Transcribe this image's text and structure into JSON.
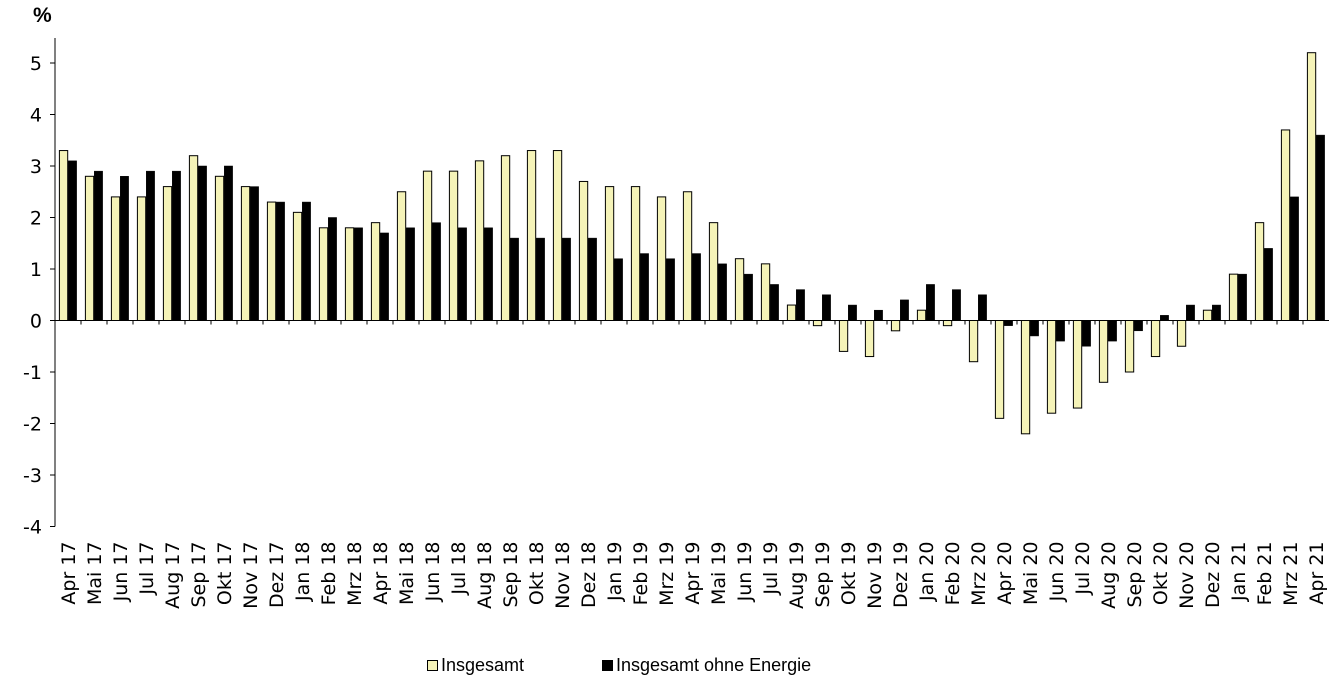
{
  "chart_data": {
    "type": "bar",
    "unit_label": "%",
    "ylim": [
      -4,
      5.5
    ],
    "yticks": [
      "5",
      "4",
      "3",
      "2",
      "1",
      "0",
      "-1",
      "-2",
      "-3",
      "-4"
    ],
    "ytick_values": [
      5,
      4,
      3,
      2,
      1,
      0,
      -1,
      -2,
      -3,
      -4
    ],
    "categories": [
      "Apr 17",
      "Mai 17",
      "Jun 17",
      "Jul 17",
      "Aug 17",
      "Sep 17",
      "Okt 17",
      "Nov 17",
      "Dez 17",
      "Jan 18",
      "Feb 18",
      "Mrz 18",
      "Apr 18",
      "Mai 18",
      "Jun 18",
      "Jul 18",
      "Aug 18",
      "Sep 18",
      "Okt 18",
      "Nov 18",
      "Dez 18",
      "Jan 19",
      "Feb 19",
      "Mrz 19",
      "Apr 19",
      "Mai 19",
      "Jun 19",
      "Jul 19",
      "Aug 19",
      "Sep 19",
      "Okt 19",
      "Nov 19",
      "Dez 19",
      "Jan 20",
      "Feb 20",
      "Mrz 20",
      "Apr 20",
      "Mai 20",
      "Jun 20",
      "Jul 20",
      "Aug 20",
      "Sep 20",
      "Okt 20",
      "Nov 20",
      "Dez 20",
      "Jan 21",
      "Feb 21",
      "Mrz 21",
      "Apr 21"
    ],
    "series": [
      {
        "name": "Insgesamt",
        "color": "#f5f3b8",
        "values": [
          3.3,
          2.8,
          2.4,
          2.4,
          2.6,
          3.2,
          2.8,
          2.6,
          2.3,
          2.1,
          1.8,
          1.8,
          1.9,
          2.5,
          2.9,
          2.9,
          3.1,
          3.2,
          3.3,
          3.3,
          2.7,
          2.6,
          2.6,
          2.4,
          2.5,
          1.9,
          1.2,
          1.1,
          0.3,
          -0.1,
          -0.6,
          -0.7,
          -0.2,
          0.2,
          -0.1,
          -0.8,
          -1.9,
          -2.2,
          -1.8,
          -1.7,
          -1.2,
          -1.0,
          -0.7,
          -0.5,
          0.2,
          0.9,
          1.9,
          3.7,
          5.2
        ]
      },
      {
        "name": "Insgesamt ohne Energie",
        "color": "#000000",
        "values": [
          3.1,
          2.9,
          2.8,
          2.9,
          2.9,
          3.0,
          3.0,
          2.6,
          2.3,
          2.3,
          2.0,
          1.8,
          1.7,
          1.8,
          1.9,
          1.8,
          1.8,
          1.6,
          1.6,
          1.6,
          1.6,
          1.2,
          1.3,
          1.2,
          1.3,
          1.1,
          0.9,
          0.7,
          0.6,
          0.5,
          0.3,
          0.2,
          0.4,
          0.7,
          0.6,
          0.5,
          -0.1,
          -0.3,
          -0.4,
          -0.5,
          -0.4,
          -0.2,
          0.1,
          0.3,
          0.3,
          0.9,
          1.4,
          2.4,
          3.6
        ]
      }
    ],
    "grid": false,
    "legend_position": "bottom"
  }
}
